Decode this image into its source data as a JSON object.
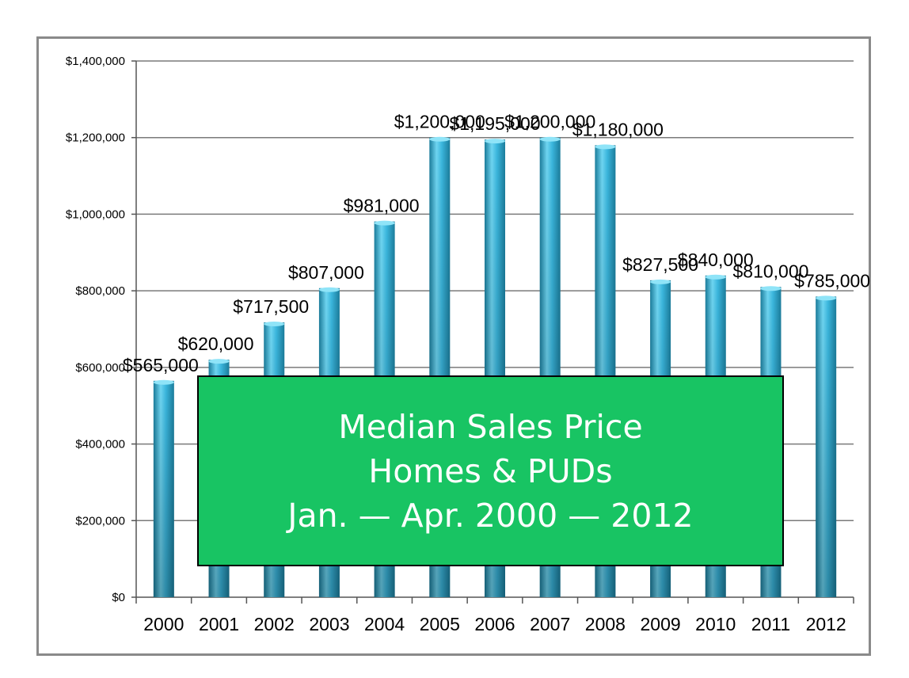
{
  "chart_data": {
    "type": "bar",
    "title_lines": [
      "Median Sales Price",
      "Homes & PUDs",
      "Jan. — Apr. 2000 — 2012"
    ],
    "categories": [
      "2000",
      "2001",
      "2002",
      "2003",
      "2004",
      "2005",
      "2006",
      "2007",
      "2008",
      "2009",
      "2010",
      "2011",
      "2012"
    ],
    "values": [
      565000,
      620000,
      717500,
      807000,
      981000,
      1200000,
      1195000,
      1200000,
      1180000,
      827500,
      840000,
      810000,
      785000
    ],
    "data_labels": [
      "$565,000",
      "$620,000",
      "$717,500",
      "$807,000",
      "$981,000",
      "$1,200,000",
      "$1,195,000",
      "$1,200,000",
      "$1,180,000",
      "$827,500",
      "$840,000",
      "$810,000",
      "$785,000"
    ],
    "y_ticks": [
      0,
      200000,
      400000,
      600000,
      800000,
      1000000,
      1200000,
      1400000
    ],
    "y_tick_labels": [
      "$0",
      "$200,000",
      "$400,000",
      "$600,000",
      "$800,000",
      "$1,000,000",
      "$1,200,000",
      "$1,400,000"
    ],
    "ylim": [
      0,
      1400000
    ],
    "xlabel": "",
    "ylabel": "",
    "grid": true,
    "legend": "none",
    "colors": {
      "bar": "#2aa6cc",
      "bar_light": "#6fd6f2",
      "bar_dark": "#1b7d9c",
      "title_box": "#18c463",
      "frame": "#8a8a8a"
    }
  }
}
